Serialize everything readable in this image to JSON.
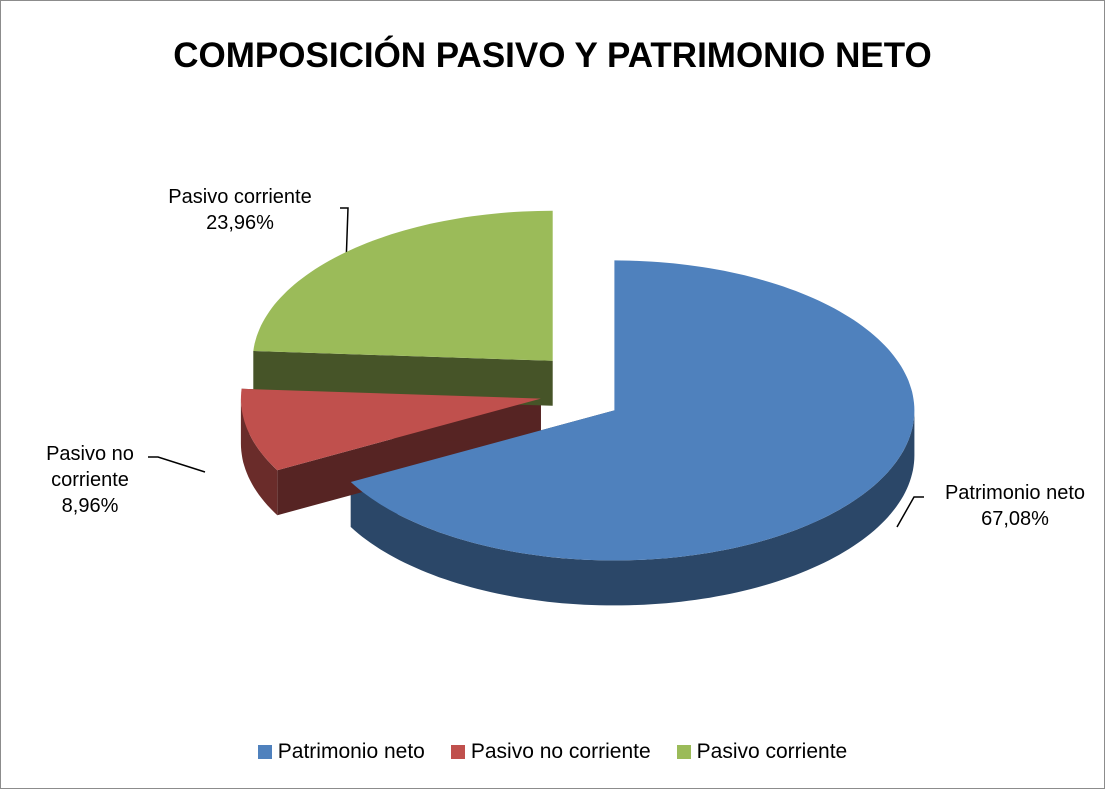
{
  "chart_data": {
    "type": "pie",
    "title": "COMPOSICIÓN PASIVO Y PATRIMONIO NETO",
    "categories": [
      "Patrimonio neto",
      "Pasivo no corriente",
      "Pasivo corriente"
    ],
    "values": [
      67.08,
      8.96,
      23.96
    ],
    "value_labels": [
      "67,08%",
      "8,96%",
      "23,96%"
    ],
    "colors": [
      "#4f81bd",
      "#c0504d",
      "#9bbb59"
    ],
    "legend": "bottom"
  }
}
